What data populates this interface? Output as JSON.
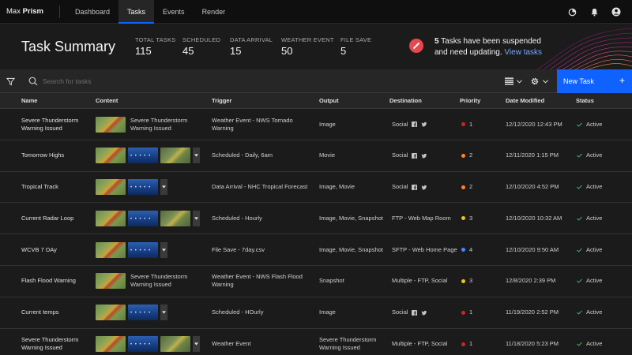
{
  "app": {
    "brand_light": "Max",
    "brand_bold": "Prism",
    "nav": [
      "Dashboard",
      "Tasks",
      "Events",
      "Render"
    ],
    "active_nav": "Tasks"
  },
  "summary": {
    "title": "Task Summary",
    "stats": [
      {
        "label": "TOTAL TASKS",
        "value": "115"
      },
      {
        "label": "SCHEDULED",
        "value": "45"
      },
      {
        "label": "DATA ARRIVAL",
        "value": "15"
      },
      {
        "label": "WEATHER EVENT",
        "value": "50"
      },
      {
        "label": "FILE SAVE",
        "value": "5"
      }
    ],
    "alert": {
      "count": "5",
      "text_1": " Tasks have been suspended",
      "text_2": "and need updating. ",
      "link": "View tasks"
    }
  },
  "toolbar": {
    "search_placeholder": "Search for tasks",
    "new_task_label": "New Task",
    "new_task_plus": "+"
  },
  "table": {
    "columns": [
      "Name",
      "Content",
      "Trigger",
      "Output",
      "Destination",
      "Priority",
      "Date Modified",
      "Status"
    ],
    "rows": [
      {
        "name": "Severe Thunderstorm Warning Issued",
        "content_title": "Severe Thunderstorm Warning Issued",
        "trigger": "Weather Event - NWS Tornado Warning",
        "output": "Image",
        "destination": "Social",
        "priority": "1",
        "date": "12/12/2020 12:43 PM",
        "status": "Active"
      },
      {
        "name": "Tomorrow Highs",
        "content_title": "",
        "trigger": "Scheduled - Daily, 6am",
        "output": "Movie",
        "destination": "Social",
        "priority": "2",
        "date": "12/11/2020 1:15 PM",
        "status": "Active"
      },
      {
        "name": "Tropical Track",
        "content_title": "",
        "trigger": "Data Arrival - NHC Tropical Forecast",
        "output": "Image, Movie",
        "destination": "Social",
        "priority": "2",
        "date": "12/10/2020 4:52 PM",
        "status": "Active"
      },
      {
        "name": "Current Radar Loop",
        "content_title": "",
        "trigger": "Scheduled - Hourly",
        "output": "Image, Movie, Snapshot",
        "destination": "FTP - Web Map Room",
        "priority": "3",
        "date": "12/10/2020 10:32 AM",
        "status": "Active"
      },
      {
        "name": "WCVB 7 DAy",
        "content_title": "",
        "trigger": "File Save - 7day.csv",
        "output": "Image, Movie, Snapshot",
        "destination": "SFTP - Web Home Page",
        "priority": "4",
        "date": "12/10/2020 9:50 AM",
        "status": "Active"
      },
      {
        "name": "Flash Flood Warning",
        "content_title": "Severe Thunderstorm Warning Issued",
        "trigger": "Weather Event - NWS Flash Flood Warning",
        "output": "Snapshot",
        "destination": "Multiple - FTP, Social",
        "priority": "3",
        "date": "12/8/2020 2:39 PM",
        "status": "Active"
      },
      {
        "name": "Current temps",
        "content_title": "",
        "trigger": "Scheduled - HOurly",
        "output": "Image",
        "destination": "Social",
        "priority": "1",
        "date": "11/19/2020 2:52 PM",
        "status": "Active"
      },
      {
        "name": "Severe Thunderstorm Warning Issued",
        "content_title": "",
        "trigger": "Weather Event",
        "output": "Severe Thunderstorm Warning Issued",
        "destination": "Multiple - FTP, Social",
        "priority": "1",
        "date": "11/18/2020 5:23 PM",
        "status": "Active"
      }
    ]
  },
  "colors": {
    "accent": "#0f62fe",
    "link": "#78a9ff",
    "alert": "#e5484d",
    "priority_1": "#da1e28",
    "priority_2": "#ff832b",
    "priority_3": "#f1c21b",
    "priority_4": "#4589ff",
    "status_check": "#42be65"
  },
  "icons": {
    "topbar": [
      "activity-icon",
      "notification-bell-icon",
      "user-avatar-icon"
    ],
    "toolbar": [
      "filter-icon",
      "search-icon",
      "list-view-icon",
      "settings-gear-icon"
    ]
  }
}
